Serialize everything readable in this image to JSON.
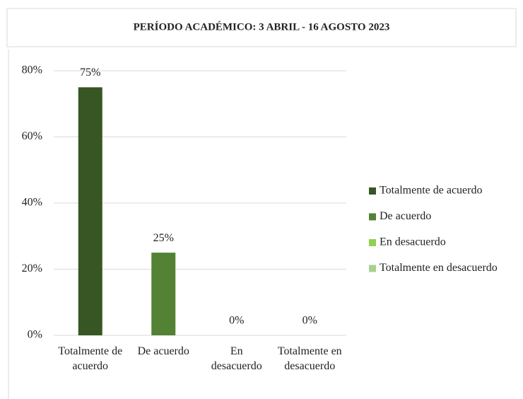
{
  "chart_data": {
    "type": "bar",
    "title": "PERÍODO ACADÉMICO: 3 ABRIL - 16 AGOSTO 2023",
    "categories": [
      "Totalmente de acuerdo",
      "De acuerdo",
      "En desacuerdo",
      "Totalmente en desacuerdo"
    ],
    "values": [
      75,
      25,
      0,
      0
    ],
    "value_labels": [
      "75%",
      "25%",
      "0%",
      "0%"
    ],
    "colors": [
      "#375623",
      "#548235",
      "#92d050",
      "#a9d18e"
    ],
    "ylim": [
      0,
      80
    ],
    "yticks": [
      {
        "value": 0,
        "label": "0%"
      },
      {
        "value": 20,
        "label": "20%"
      },
      {
        "value": 40,
        "label": "40%"
      },
      {
        "value": 60,
        "label": "60%"
      },
      {
        "value": 80,
        "label": "80%"
      }
    ],
    "grid": true,
    "legend": "right"
  }
}
